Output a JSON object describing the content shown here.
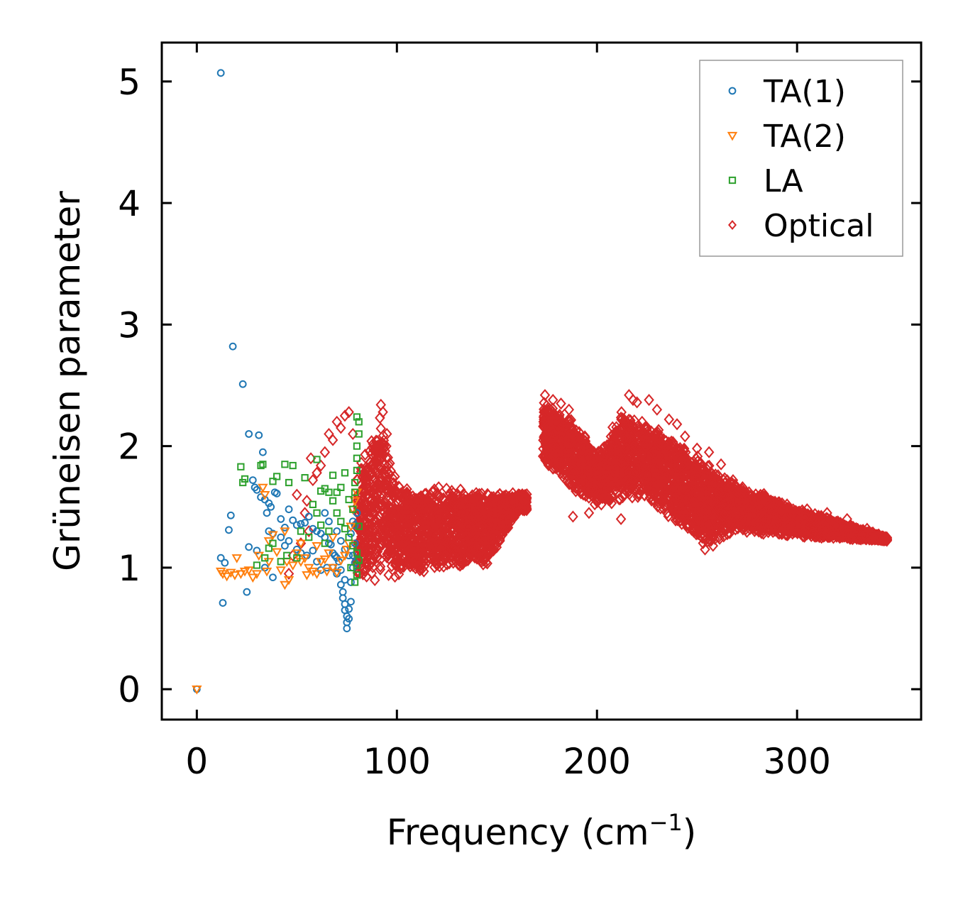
{
  "chart_data": {
    "type": "scatter",
    "title": "",
    "xlabel": "Frequency (cm",
    "xlabel_sup": "−1",
    "xlabel_close": ")",
    "ylabel": "Grüneisen parameter",
    "xlim": [
      -17.5,
      362
    ],
    "ylim": [
      -0.25,
      5.32
    ],
    "xticks": [
      0,
      100,
      200,
      300
    ],
    "xtick_labels": [
      "0",
      "100",
      "200",
      "300"
    ],
    "yticks": [
      0,
      1,
      2,
      3,
      4,
      5
    ],
    "ytick_labels": [
      "0",
      "1",
      "2",
      "3",
      "4",
      "5"
    ],
    "legend_position": "top-right",
    "series": [
      {
        "name": "TA(1)",
        "marker": "circle",
        "color": "#1f77b4",
        "points": [
          [
            0,
            0
          ],
          [
            12,
            5.07
          ],
          [
            18,
            2.82
          ],
          [
            23,
            2.51
          ],
          [
            26,
            2.1
          ],
          [
            31,
            2.09
          ],
          [
            33,
            1.95
          ],
          [
            12,
            1.08
          ],
          [
            14,
            1.04
          ],
          [
            16,
            1.31
          ],
          [
            17,
            1.43
          ],
          [
            13,
            0.71
          ],
          [
            25,
            0.8
          ],
          [
            26,
            1.17
          ],
          [
            28,
            1.72
          ],
          [
            29,
            1.66
          ],
          [
            30,
            1.64
          ],
          [
            32,
            1.58
          ],
          [
            34,
            1.56
          ],
          [
            35,
            1.45
          ],
          [
            36,
            1.53
          ],
          [
            37,
            1.5
          ],
          [
            38,
            1.28
          ],
          [
            39,
            1.62
          ],
          [
            40,
            1.61
          ],
          [
            42,
            1.4
          ],
          [
            44,
            1.33
          ],
          [
            46,
            1.48
          ],
          [
            48,
            1.39
          ],
          [
            50,
            1.35
          ],
          [
            52,
            1.36
          ],
          [
            54,
            1.37
          ],
          [
            56,
            1.42
          ],
          [
            58,
            1.32
          ],
          [
            60,
            1.3
          ],
          [
            62,
            1.28
          ],
          [
            64,
            1.25
          ],
          [
            66,
            1.2
          ],
          [
            67,
            1.19
          ],
          [
            68,
            1.12
          ],
          [
            69,
            1.1
          ],
          [
            70,
            1.08
          ],
          [
            71,
            1.05
          ],
          [
            72,
            0.98
          ],
          [
            72,
            0.86
          ],
          [
            73,
            0.8
          ],
          [
            73,
            0.75
          ],
          [
            74,
            0.7
          ],
          [
            74,
            0.65
          ],
          [
            75,
            0.6
          ],
          [
            75,
            0.55
          ],
          [
            75,
            0.5
          ],
          [
            76,
            0.58
          ],
          [
            76,
            0.66
          ],
          [
            77,
            0.72
          ],
          [
            77,
            0.88
          ],
          [
            78,
            1.0
          ],
          [
            78,
            1.1
          ],
          [
            79,
            1.2
          ],
          [
            79,
            1.35
          ],
          [
            80,
            1.45
          ],
          [
            36,
            1.3
          ],
          [
            44,
            1.18
          ],
          [
            50,
            1.15
          ],
          [
            55,
            1.1
          ],
          [
            60,
            1.05
          ],
          [
            65,
            1.0
          ],
          [
            70,
            0.95
          ],
          [
            74,
            0.9
          ],
          [
            30,
            1.14
          ],
          [
            34,
            1.0
          ],
          [
            38,
            0.92
          ],
          [
            42,
            1.25
          ],
          [
            46,
            1.22
          ],
          [
            52,
            1.12
          ],
          [
            58,
            1.14
          ],
          [
            62,
            0.98
          ],
          [
            68,
            1.0
          ],
          [
            70,
            1.3
          ],
          [
            72,
            1.22
          ],
          [
            74,
            1.15
          ],
          [
            76,
            1.1
          ],
          [
            77,
            1.28
          ],
          [
            78,
            1.38
          ],
          [
            79,
            1.04
          ],
          [
            66,
            1.38
          ],
          [
            64,
            1.45
          ]
        ]
      },
      {
        "name": "TA(2)",
        "marker": "triangle-down",
        "color": "#ff7f0e",
        "points": [
          [
            0,
            0
          ],
          [
            12,
            0.97
          ],
          [
            13,
            0.95
          ],
          [
            15,
            0.93
          ],
          [
            17,
            0.96
          ],
          [
            19,
            0.94
          ],
          [
            20,
            1.08
          ],
          [
            22,
            0.95
          ],
          [
            24,
            0.97
          ],
          [
            26,
            0.98
          ],
          [
            28,
            0.92
          ],
          [
            30,
            0.95
          ],
          [
            31,
            1.1
          ],
          [
            33,
            1.66
          ],
          [
            34,
            1.6
          ],
          [
            36,
            1.05
          ],
          [
            38,
            1.27
          ],
          [
            40,
            1.13
          ],
          [
            42,
            0.98
          ],
          [
            44,
            0.86
          ],
          [
            46,
            0.9
          ],
          [
            48,
            1.02
          ],
          [
            50,
            1.12
          ],
          [
            52,
            1.2
          ],
          [
            54,
            1.08
          ],
          [
            56,
            1.0
          ],
          [
            58,
            0.97
          ],
          [
            60,
            0.95
          ],
          [
            62,
            1.05
          ],
          [
            64,
            1.07
          ],
          [
            66,
            1.12
          ],
          [
            68,
            1.0
          ],
          [
            70,
            0.96
          ],
          [
            72,
            1.06
          ],
          [
            74,
            1.1
          ],
          [
            75,
            1.15
          ],
          [
            76,
            1.2
          ],
          [
            77,
            1.34
          ],
          [
            78,
            1.48
          ],
          [
            79,
            1.55
          ],
          [
            80,
            1.62
          ],
          [
            36,
            1.22
          ],
          [
            44,
            1.3
          ],
          [
            52,
            1.05
          ],
          [
            60,
            1.18
          ],
          [
            68,
            1.25
          ],
          [
            35,
            0.97
          ],
          [
            45,
            1.05
          ],
          [
            55,
            0.94
          ],
          [
            65,
            0.97
          ]
        ]
      },
      {
        "name": "LA",
        "marker": "square",
        "color": "#2ca02c",
        "points": [
          [
            22,
            1.83
          ],
          [
            23,
            1.7
          ],
          [
            24,
            1.73
          ],
          [
            32,
            1.84
          ],
          [
            33,
            1.85
          ],
          [
            38,
            1.71
          ],
          [
            40,
            1.75
          ],
          [
            44,
            1.85
          ],
          [
            46,
            1.7
          ],
          [
            48,
            1.84
          ],
          [
            54,
            1.74
          ],
          [
            60,
            1.89
          ],
          [
            62,
            1.63
          ],
          [
            64,
            1.65
          ],
          [
            66,
            1.62
          ],
          [
            68,
            1.76
          ],
          [
            70,
            1.62
          ],
          [
            72,
            1.66
          ],
          [
            74,
            1.78
          ],
          [
            76,
            1.56
          ],
          [
            78,
            1.48
          ],
          [
            79,
            1.62
          ],
          [
            79,
            1.7
          ],
          [
            80,
            1.8
          ],
          [
            80,
            1.9
          ],
          [
            80,
            2.0
          ],
          [
            81,
            2.1
          ],
          [
            81,
            2.2
          ],
          [
            80,
            2.24
          ],
          [
            81,
            1.34
          ],
          [
            80,
            1.02
          ],
          [
            80,
            0.94
          ],
          [
            79,
            0.88
          ],
          [
            36,
            1.16
          ],
          [
            38,
            1.2
          ],
          [
            42,
            1.05
          ],
          [
            45,
            1.1
          ],
          [
            50,
            1.08
          ],
          [
            52,
            1.3
          ],
          [
            56,
            1.25
          ],
          [
            58,
            1.52
          ],
          [
            60,
            1.45
          ],
          [
            62,
            1.35
          ],
          [
            64,
            1.2
          ],
          [
            66,
            1.3
          ],
          [
            68,
            1.55
          ],
          [
            70,
            1.45
          ],
          [
            72,
            1.38
          ],
          [
            74,
            1.32
          ],
          [
            76,
            1.25
          ],
          [
            78,
            1.18
          ],
          [
            80,
            1.12
          ],
          [
            81,
            1.06
          ],
          [
            77,
            1.0
          ],
          [
            34,
            1.08
          ],
          [
            30,
            1.02
          ]
        ]
      },
      {
        "name": "Optical",
        "marker": "diamond",
        "color": "#d62728",
        "clusters": [
          {
            "x_range": [
              80,
              165
            ],
            "center_upper": [
              [
                80,
                1.85
              ],
              [
                92,
                2.3
              ],
              [
                100,
                1.7
              ],
              [
                140,
                1.65
              ],
              [
                160,
                1.62
              ]
            ],
            "center_lower": [
              [
                80,
                0.85
              ],
              [
                100,
                0.9
              ],
              [
                130,
                1.0
              ],
              [
                145,
                1.0
              ],
              [
                160,
                1.45
              ]
            ]
          },
          {
            "x_range": [
              173,
              345
            ],
            "center_upper": [
              [
                173,
                2.4
              ],
              [
                190,
                2.2
              ],
              [
                200,
                1.95
              ],
              [
                212,
                2.3
              ],
              [
                225,
                2.2
              ],
              [
                250,
                1.95
              ],
              [
                270,
                1.7
              ],
              [
                300,
                1.5
              ],
              [
                345,
                1.25
              ]
            ],
            "center_lower": [
              [
                173,
                1.85
              ],
              [
                190,
                1.6
              ],
              [
                200,
                1.5
              ],
              [
                225,
                1.55
              ],
              [
                255,
                1.15
              ],
              [
                270,
                1.3
              ],
              [
                300,
                1.25
              ],
              [
                345,
                1.22
              ]
            ]
          }
        ],
        "points": [
          [
            57,
            1.9
          ],
          [
            60,
            1.78
          ],
          [
            62,
            1.84
          ],
          [
            64,
            1.95
          ],
          [
            66,
            2.1
          ],
          [
            68,
            2.05
          ],
          [
            70,
            2.2
          ],
          [
            72,
            2.15
          ],
          [
            74,
            2.25
          ],
          [
            76,
            2.28
          ],
          [
            78,
            2.1
          ],
          [
            55,
            1.55
          ],
          [
            58,
            1.72
          ],
          [
            50,
            1.6
          ],
          [
            54,
            1.45
          ],
          [
            56,
            1.3
          ],
          [
            52,
            1.2
          ],
          [
            48,
            1.1
          ],
          [
            46,
            0.95
          ],
          [
            92,
            2.34
          ],
          [
            93,
            2.28
          ],
          [
            95,
            2.1
          ],
          [
            90,
            2.0
          ],
          [
            174,
            2.42
          ],
          [
            178,
            2.38
          ],
          [
            182,
            2.35
          ],
          [
            186,
            2.3
          ],
          [
            216,
            2.42
          ],
          [
            218,
            2.38
          ],
          [
            220,
            2.36
          ],
          [
            226,
            2.38
          ],
          [
            230,
            2.3
          ],
          [
            236,
            2.22
          ],
          [
            240,
            2.18
          ],
          [
            244,
            2.08
          ],
          [
            250,
            1.98
          ],
          [
            256,
            1.95
          ],
          [
            262,
            1.85
          ],
          [
            268,
            1.72
          ],
          [
            276,
            1.62
          ],
          [
            285,
            1.56
          ],
          [
            295,
            1.52
          ],
          [
            305,
            1.48
          ],
          [
            315,
            1.45
          ],
          [
            325,
            1.4
          ],
          [
            335,
            1.32
          ],
          [
            343,
            1.25
          ],
          [
            254,
            1.15
          ],
          [
            258,
            1.18
          ],
          [
            250,
            1.3
          ],
          [
            212,
            1.4
          ],
          [
            188,
            1.42
          ],
          [
            196,
            1.45
          ]
        ]
      }
    ]
  }
}
